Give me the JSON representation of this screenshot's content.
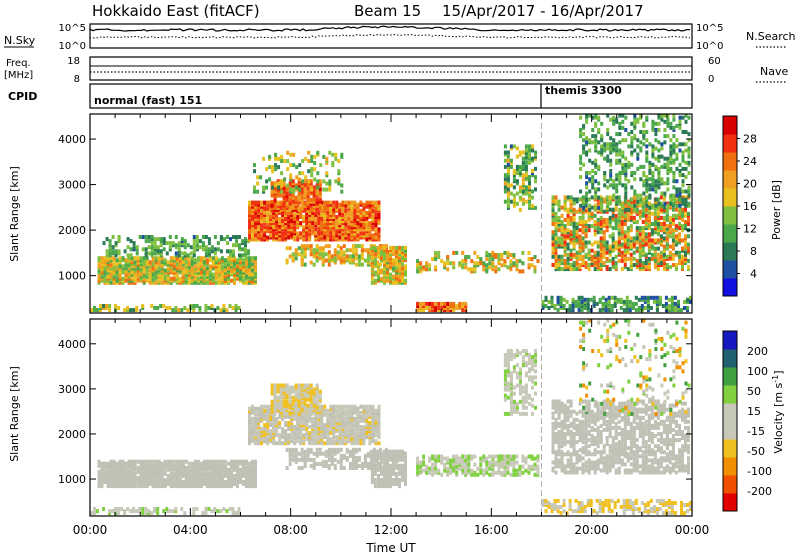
{
  "header": {
    "title": "Hokkaido East (fitACF)",
    "beam": "Beam 15",
    "date_range": "15/Apr/2017 - 16/Apr/2017"
  },
  "status_panels": {
    "nsky_label": "N.Sky",
    "nsearch_label": "N.Search",
    "nsky_ticks": [
      "10^5",
      "10^0"
    ],
    "nsearch_ticks": [
      "10^5",
      "10^0"
    ],
    "freq_label_line1": "Freq.",
    "freq_label_line2": "[MHz]",
    "freq_ticks": [
      "18",
      "8"
    ],
    "nave_label": "Nave",
    "nave_ticks": [
      "60",
      "0"
    ],
    "cpid_label": "CPID",
    "cpid_segments": [
      {
        "label": "normal (fast) 151",
        "start_hour": 0
      },
      {
        "label": "themis 3300",
        "start_hour": 18
      }
    ]
  },
  "colors": {
    "power_scale": [
      "#1010e0",
      "#1e4fa0",
      "#2a7a55",
      "#4aa84a",
      "#80c040",
      "#e8c020",
      "#f0a020",
      "#f07010",
      "#f03010",
      "#d80000"
    ],
    "velocity_scale": [
      "#e00000",
      "#f05000",
      "#f09000",
      "#f0c020",
      "#c8c8b8",
      "#c8c8b8",
      "#80d040",
      "#40a040",
      "#206070",
      "#1818c0"
    ],
    "ground_scatter": "#c0c0b4"
  },
  "chart_data": [
    {
      "type": "heatmap",
      "name": "power",
      "xlabel": "",
      "ylabel": "Slant Range [km]",
      "x_ticks": [
        "00:00",
        "04:00",
        "08:00",
        "12:00",
        "16:00",
        "20:00",
        "00:00"
      ],
      "xlim_hours": [
        0,
        24
      ],
      "ylim": [
        180,
        4550
      ],
      "y_ticks": [
        1000,
        2000,
        3000,
        4000
      ],
      "colorbar": {
        "label": "Power [dB]",
        "range": [
          0,
          32
        ],
        "ticks": [
          4,
          8,
          12,
          16,
          20,
          24,
          28
        ]
      },
      "regions": [
        {
          "t0": 0.3,
          "t1": 6.6,
          "r0": 800,
          "r1": 1380,
          "v0": 10,
          "v1": 24,
          "d": 0.88
        },
        {
          "t0": 0.5,
          "t1": 6.3,
          "r0": 1400,
          "r1": 1820,
          "v0": 6,
          "v1": 16,
          "d": 0.35
        },
        {
          "t0": 6.3,
          "t1": 11.5,
          "r0": 1750,
          "r1": 2600,
          "v0": 18,
          "v1": 30,
          "d": 0.85
        },
        {
          "t0": 7.2,
          "t1": 9.2,
          "r0": 2400,
          "r1": 3050,
          "v0": 20,
          "v1": 30,
          "d": 0.75
        },
        {
          "t0": 7.8,
          "t1": 11.8,
          "r0": 1200,
          "r1": 1650,
          "v0": 12,
          "v1": 24,
          "d": 0.45
        },
        {
          "t0": 6.5,
          "t1": 10.0,
          "r0": 2800,
          "r1": 3700,
          "v0": 8,
          "v1": 20,
          "d": 0.18
        },
        {
          "t0": 11.2,
          "t1": 12.6,
          "r0": 800,
          "r1": 1600,
          "v0": 12,
          "v1": 24,
          "d": 0.7
        },
        {
          "t0": 13.0,
          "t1": 15.0,
          "r0": 200,
          "r1": 350,
          "v0": 18,
          "v1": 30,
          "d": 0.8
        },
        {
          "t0": 13.0,
          "t1": 17.8,
          "r0": 1050,
          "r1": 1500,
          "v0": 10,
          "v1": 24,
          "d": 0.3
        },
        {
          "t0": 16.5,
          "t1": 17.8,
          "r0": 2400,
          "r1": 3800,
          "v0": 6,
          "v1": 20,
          "d": 0.35
        },
        {
          "t0": 18.4,
          "t1": 23.9,
          "r0": 1100,
          "r1": 2700,
          "v0": 8,
          "v1": 28,
          "d": 0.55
        },
        {
          "t0": 19.5,
          "t1": 23.9,
          "r0": 2400,
          "r1": 4500,
          "v0": 6,
          "v1": 16,
          "d": 0.28
        },
        {
          "t0": 0.0,
          "t1": 6.0,
          "r0": 200,
          "r1": 300,
          "v0": 8,
          "v1": 20,
          "d": 0.4
        },
        {
          "t0": 18.0,
          "t1": 23.9,
          "r0": 200,
          "r1": 500,
          "v0": 4,
          "v1": 16,
          "d": 0.5
        }
      ]
    },
    {
      "type": "heatmap",
      "name": "velocity",
      "xlabel": "Time UT",
      "ylabel": "Slant Range [km]",
      "x_ticks": [
        "00:00",
        "04:00",
        "08:00",
        "12:00",
        "16:00",
        "20:00",
        "00:00"
      ],
      "xlim_hours": [
        0,
        24
      ],
      "ylim": [
        180,
        4550
      ],
      "y_ticks": [
        1000,
        2000,
        3000,
        4000
      ],
      "colorbar": {
        "label": "Velocity [m s^-1]",
        "range": [
          -250,
          250
        ],
        "ticks": [
          200,
          100,
          50,
          15,
          -15,
          -50,
          -100,
          -200
        ]
      },
      "regions": [
        {
          "t0": 0.3,
          "t1": 6.6,
          "r0": 800,
          "r1": 1380,
          "v0": -10,
          "v1": 10,
          "d": 0.85
        },
        {
          "t0": 6.3,
          "t1": 11.5,
          "r0": 1750,
          "r1": 2600,
          "v0": -60,
          "v1": 10,
          "d": 0.75
        },
        {
          "t0": 7.2,
          "t1": 9.2,
          "r0": 2400,
          "r1": 3050,
          "v0": -70,
          "v1": -20,
          "d": 0.7
        },
        {
          "t0": 7.8,
          "t1": 11.8,
          "r0": 1200,
          "r1": 1650,
          "v0": -15,
          "v1": 12,
          "d": 0.45
        },
        {
          "t0": 11.2,
          "t1": 12.6,
          "r0": 800,
          "r1": 1600,
          "v0": -12,
          "v1": 12,
          "d": 0.7
        },
        {
          "t0": 13.0,
          "t1": 17.8,
          "r0": 1050,
          "r1": 1500,
          "v0": 20,
          "v1": 70,
          "d": 0.55
        },
        {
          "t0": 16.5,
          "t1": 17.8,
          "r0": 2400,
          "r1": 3800,
          "v0": 20,
          "v1": 60,
          "d": 0.35
        },
        {
          "t0": 18.4,
          "t1": 23.9,
          "r0": 1100,
          "r1": 2700,
          "v0": -12,
          "v1": 12,
          "d": 0.55
        },
        {
          "t0": 19.5,
          "t1": 23.9,
          "r0": 2400,
          "r1": 4500,
          "v0": -150,
          "v1": 150,
          "d": 0.12
        },
        {
          "t0": 0.0,
          "t1": 6.0,
          "r0": 200,
          "r1": 300,
          "v0": 20,
          "v1": 60,
          "d": 0.4
        },
        {
          "t0": 18.0,
          "t1": 23.9,
          "r0": 200,
          "r1": 500,
          "v0": -80,
          "v1": -20,
          "d": 0.45
        }
      ]
    }
  ]
}
